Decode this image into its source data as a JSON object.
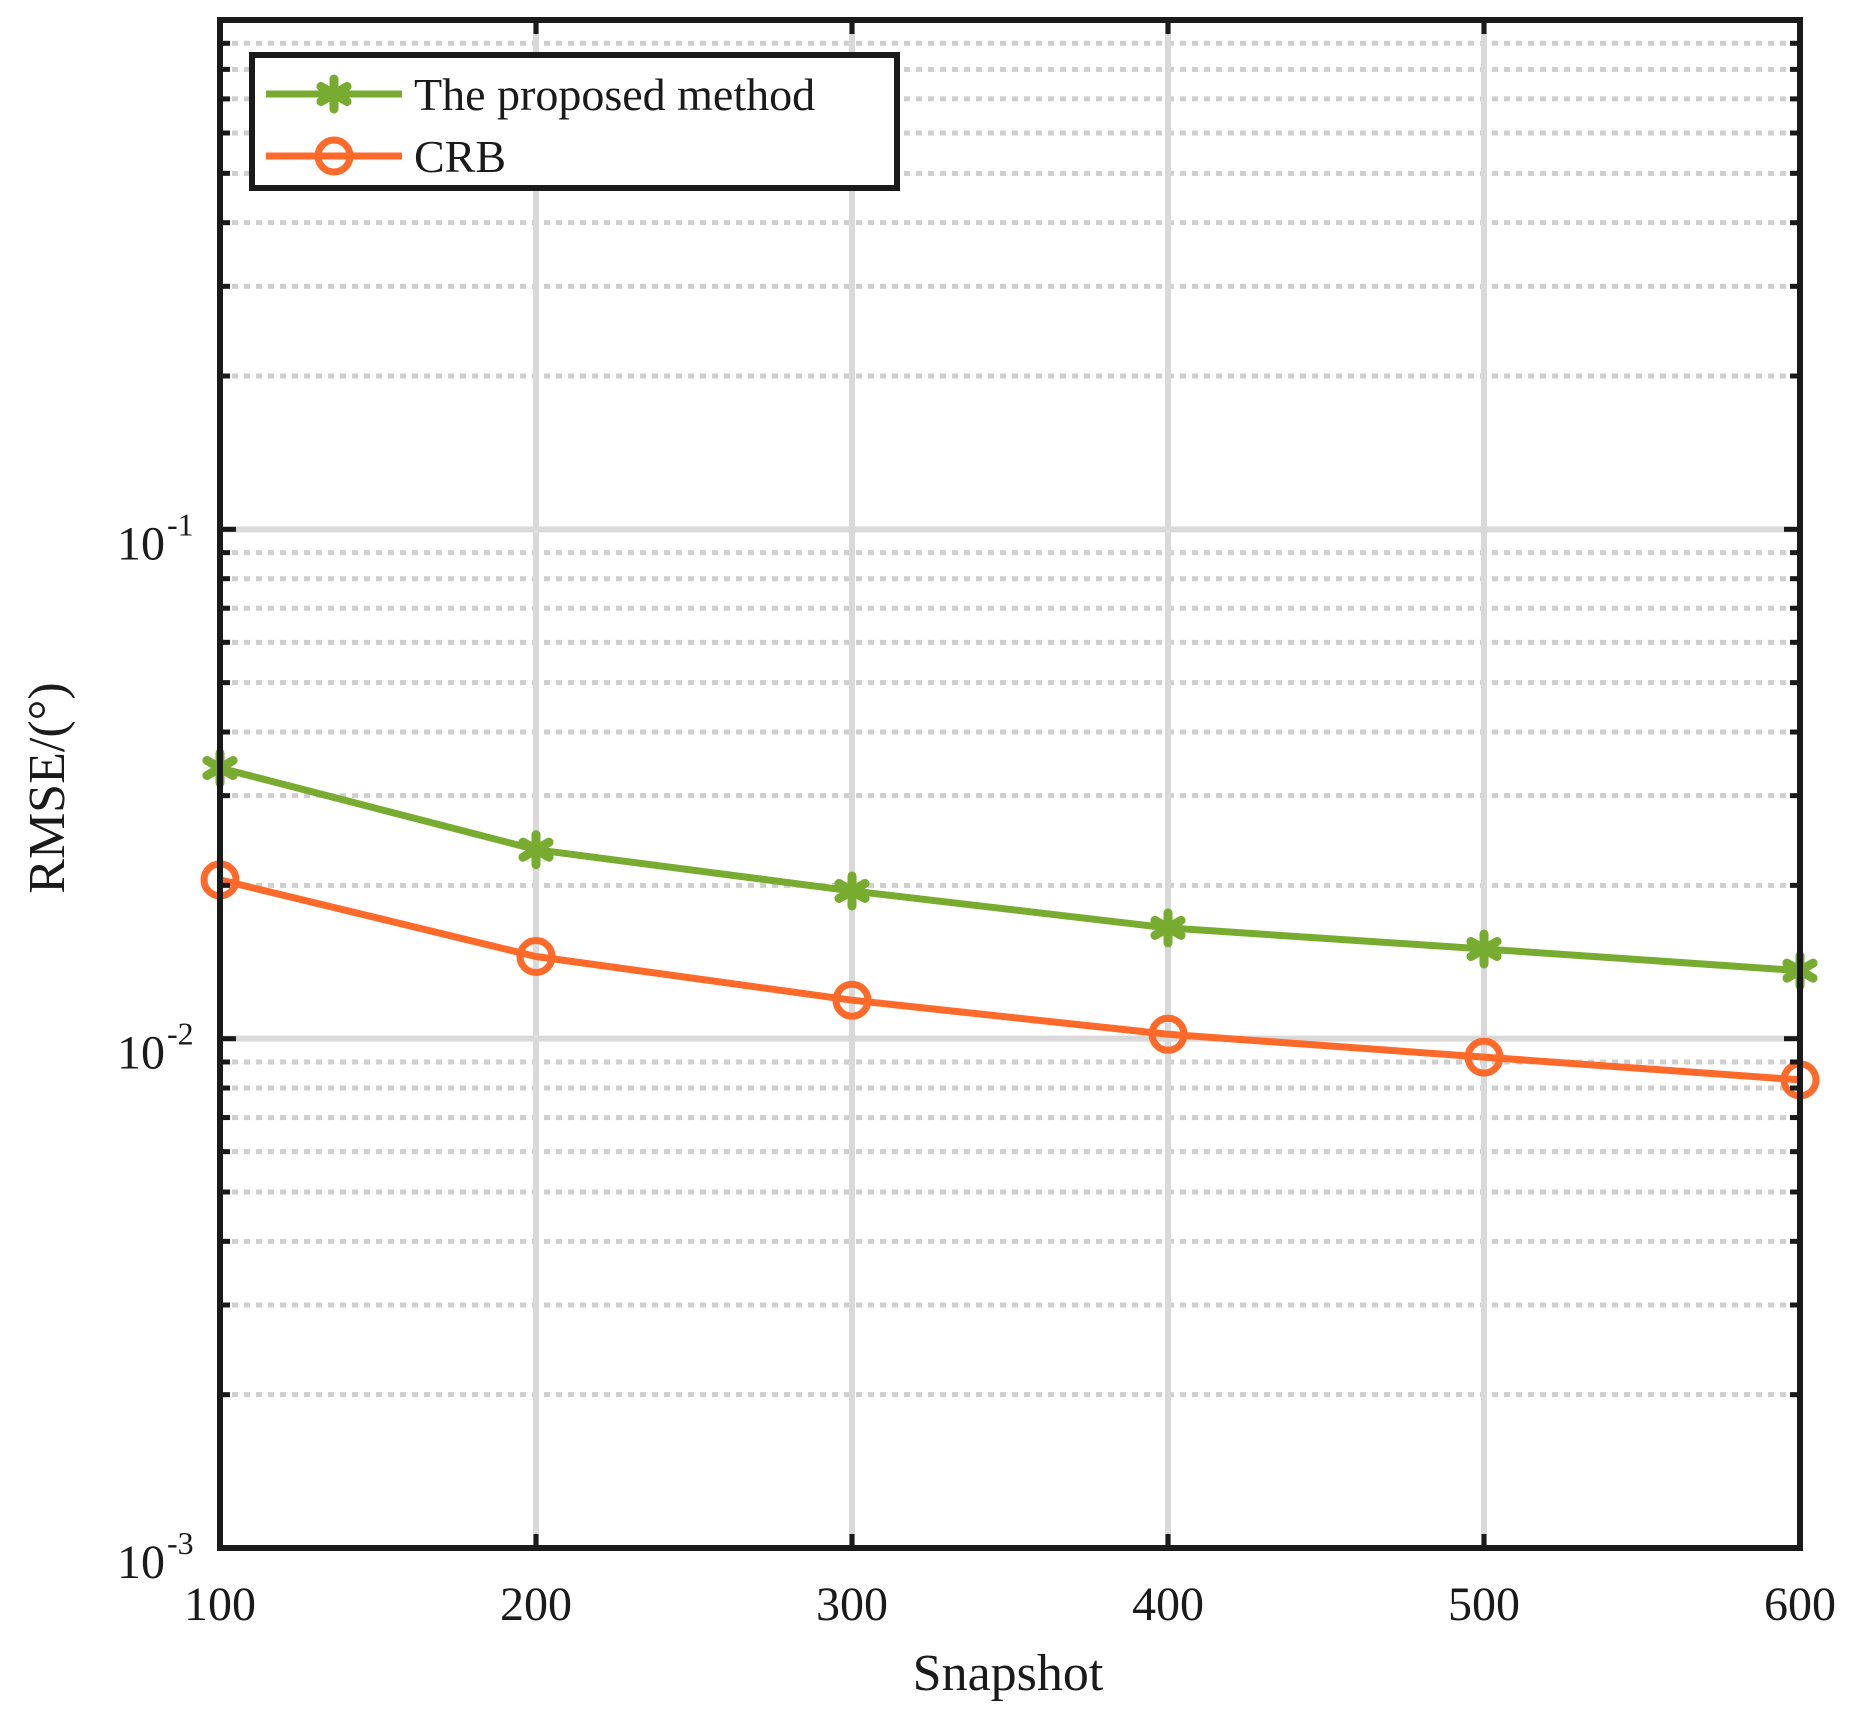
{
  "chart_data": {
    "type": "line",
    "title": "",
    "xlabel": "Snapshot",
    "ylabel": "RMSE/(°)",
    "x": [
      100,
      200,
      300,
      400,
      500,
      600
    ],
    "xlim": [
      100,
      600
    ],
    "xticks": [
      100,
      200,
      300,
      400,
      500,
      600
    ],
    "ylim": [
      0.001,
      1
    ],
    "yscale": "log",
    "yticks": [
      {
        "base": "10",
        "exp": "-3",
        "value": 0.001
      },
      {
        "base": "10",
        "exp": "-2",
        "value": 0.01
      },
      {
        "base": "10",
        "exp": "-1",
        "value": 0.1
      }
    ],
    "grid": true,
    "minor_grid": true,
    "legend_position": "top-left",
    "series": [
      {
        "name": "The proposed method",
        "color": "#77AC30",
        "marker": "asterisk",
        "values": [
          0.034,
          0.0235,
          0.0195,
          0.0165,
          0.015,
          0.0136
        ]
      },
      {
        "name": "CRB",
        "color": "#FF6929",
        "marker": "circle",
        "values": [
          0.0205,
          0.0145,
          0.0119,
          0.0102,
          0.0092,
          0.0083
        ]
      }
    ]
  }
}
